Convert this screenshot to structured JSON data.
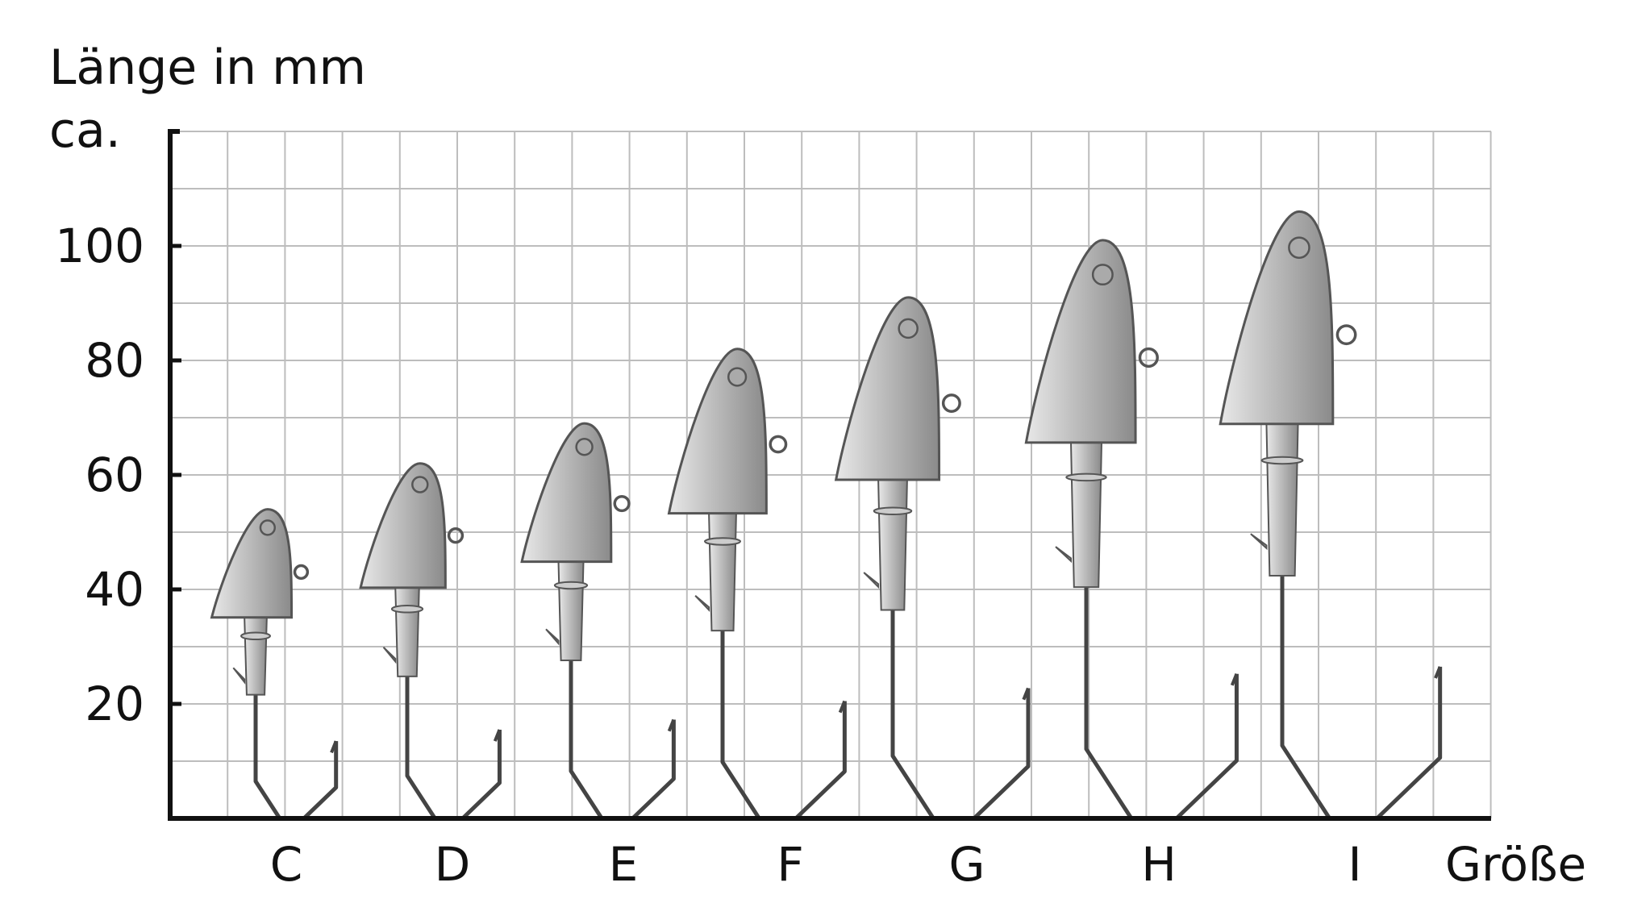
{
  "chart_data": {
    "type": "bar",
    "title": "",
    "ylabel_line1": "Länge in mm",
    "ylabel_line2": "ca.",
    "xlabel": "Größe",
    "categories": [
      "C",
      "D",
      "E",
      "F",
      "G",
      "H",
      "I"
    ],
    "values": [
      54,
      62,
      69,
      82,
      91,
      101,
      106
    ],
    "ylim": [
      0,
      120
    ],
    "yticks": [
      20,
      40,
      60,
      80,
      100
    ],
    "grid": true,
    "grid_color": "#bdbdbd",
    "mark": "jig-head-hook-illustration",
    "mark_color": "#c4c4c4"
  }
}
